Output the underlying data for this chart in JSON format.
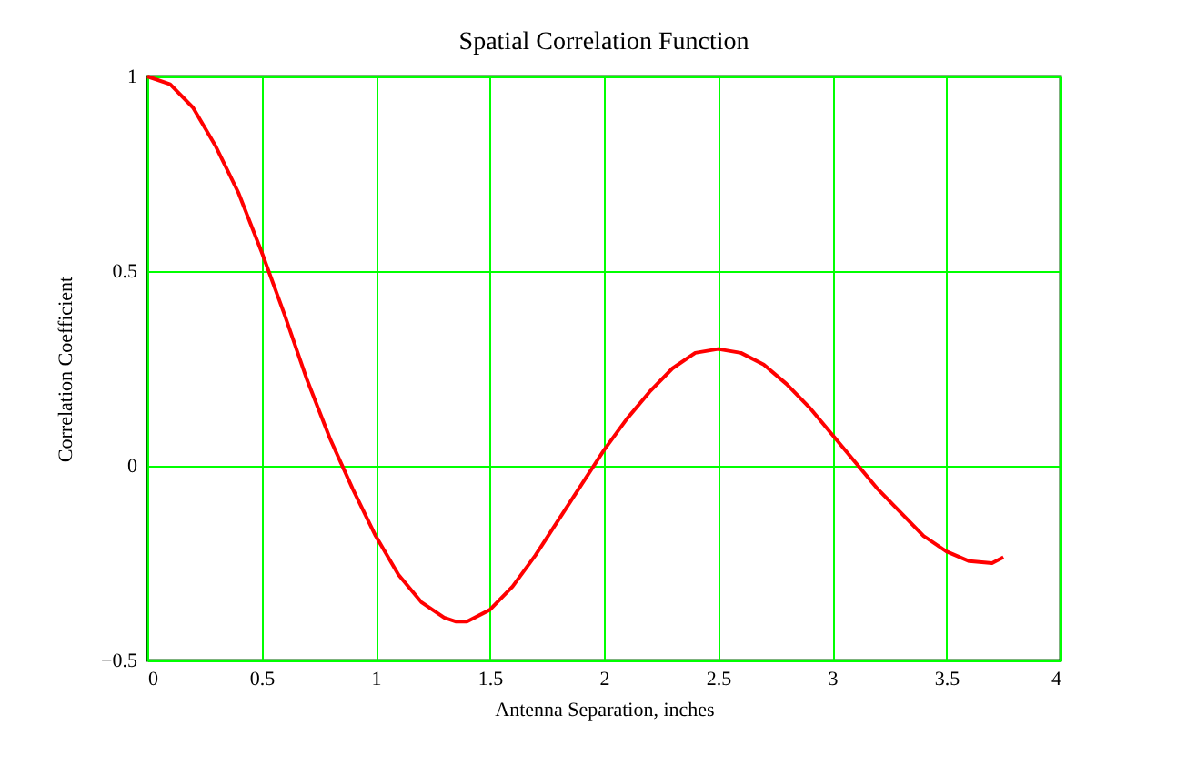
{
  "chart_data": {
    "type": "line",
    "title": "Spatial Correlation Function",
    "xlabel": "Antenna Separation, inches",
    "ylabel": "Correlation Coefficient",
    "x": [
      0,
      0.1,
      0.2,
      0.3,
      0.4,
      0.5,
      0.6,
      0.7,
      0.8,
      0.9,
      1.0,
      1.1,
      1.2,
      1.3,
      1.35,
      1.4,
      1.5,
      1.6,
      1.7,
      1.8,
      1.9,
      2.0,
      2.1,
      2.2,
      2.3,
      2.4,
      2.5,
      2.6,
      2.7,
      2.8,
      2.9,
      3.0,
      3.1,
      3.2,
      3.3,
      3.4,
      3.5,
      3.6,
      3.7,
      3.75
    ],
    "series": [
      {
        "color": "#ff0000",
        "values": [
          1,
          0.98,
          0.92,
          0.82,
          0.7,
          0.55,
          0.39,
          0.22,
          0.07,
          -0.06,
          -0.18,
          -0.28,
          -0.35,
          -0.39,
          -0.4,
          -0.4,
          -0.37,
          -0.31,
          -0.23,
          -0.14,
          -0.05,
          0.04,
          0.12,
          0.19,
          0.25,
          0.29,
          0.3,
          0.29,
          0.26,
          0.21,
          0.15,
          0.08,
          0.01,
          -0.06,
          -0.12,
          -0.18,
          -0.22,
          -0.245,
          -0.25,
          -0.235
        ]
      }
    ],
    "xlim": [
      0,
      4
    ],
    "xticks": [
      0,
      0.5,
      1,
      1.5,
      2,
      2.5,
      3,
      3.5,
      4
    ],
    "ylim": [
      -0.5,
      1
    ],
    "yticks": [
      {
        "value": -0.5,
        "label": "−0.5"
      },
      0,
      0.5,
      1
    ],
    "grid": true,
    "marker": "none",
    "line_style": "solid"
  }
}
